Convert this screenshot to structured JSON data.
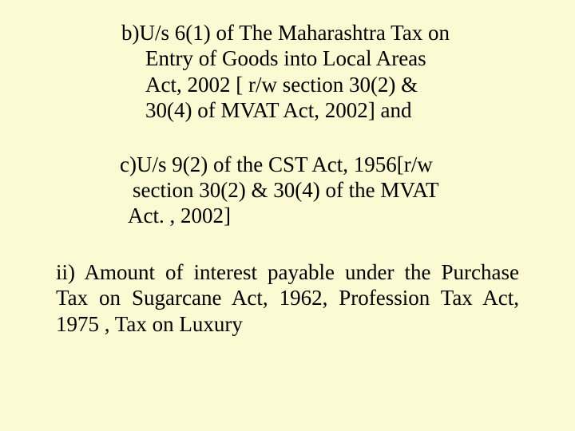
{
  "typography": {
    "font_family": "Times New Roman",
    "font_size_pt": 20,
    "line_height": 1.2,
    "text_color": "#000000"
  },
  "background_color": "#fbfad3",
  "paragraphs": {
    "b": {
      "line1": "b)U/s 6(1) of The Maharashtra Tax on",
      "line2": "Entry of Goods into Local Areas",
      "line3": "Act, 2002 [ r/w section 30(2) &",
      "line4": "30(4) of MVAT Act, 2002] and"
    },
    "c": {
      "line1": "c)U/s 9(2) of the CST Act, 1956[r/w",
      "line2": "section 30(2) & 30(4) of the MVAT",
      "line3": "Act. , 2002]"
    },
    "ii": {
      "text": "ii) Amount of interest payable under the Purchase Tax on Sugarcane Act, 1962, Profession Tax Act, 1975 , Tax on Luxury"
    }
  }
}
